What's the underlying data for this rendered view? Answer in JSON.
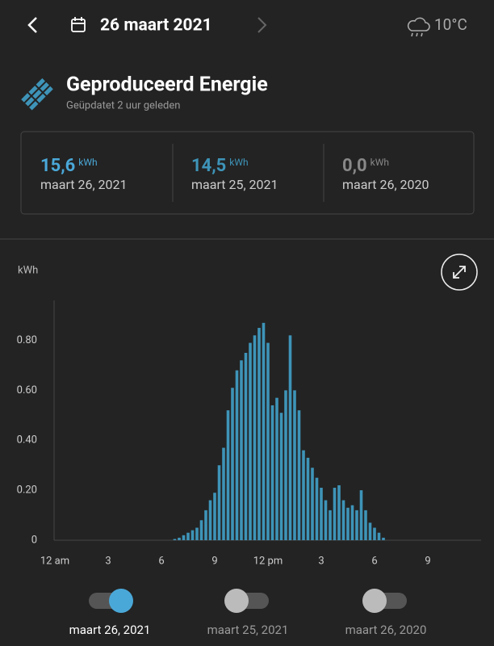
{
  "top_bar": {
    "date": "26 maart 2021",
    "temperature": "10°C"
  },
  "header": {
    "title": "Geproduceerd Energie",
    "subtitle": "Geüpdatet 2 uur geleden"
  },
  "summary": [
    {
      "value": "15,6",
      "unit": "kWh",
      "date": "maart 26, 2021"
    },
    {
      "value": "14,5",
      "unit": "kWh",
      "date": "maart 25, 2021"
    },
    {
      "value": "0,0",
      "unit": "kWh",
      "date": "maart 26, 2020"
    }
  ],
  "chart_data": {
    "type": "bar",
    "y_label": "kWh",
    "color": "#3e94b8",
    "grid": false,
    "x": [
      6.75,
      7,
      7.25,
      7.5,
      7.75,
      8,
      8.25,
      8.5,
      8.75,
      9,
      9.25,
      9.5,
      9.75,
      10,
      10.25,
      10.5,
      10.75,
      11,
      11.25,
      11.5,
      11.75,
      12,
      12.25,
      12.5,
      12.75,
      13,
      13.25,
      13.5,
      13.75,
      14,
      14.25,
      14.5,
      14.75,
      15,
      15.25,
      15.5,
      15.75,
      16,
      16.25,
      16.5,
      16.75,
      17,
      17.25,
      17.5,
      17.75,
      18,
      18.25,
      18.5
    ],
    "values": [
      0.005,
      0.01,
      0.02,
      0.03,
      0.04,
      0.05,
      0.08,
      0.12,
      0.16,
      0.19,
      0.3,
      0.37,
      0.52,
      0.61,
      0.68,
      0.72,
      0.75,
      0.79,
      0.82,
      0.85,
      0.87,
      0.79,
      0.54,
      0.57,
      0.51,
      0.6,
      0.82,
      0.6,
      0.52,
      0.36,
      0.33,
      0.29,
      0.25,
      0.21,
      0.16,
      0.12,
      0.21,
      0.22,
      0.16,
      0.13,
      0.14,
      0.12,
      0.2,
      0.12,
      0.07,
      0.05,
      0.03,
      0.01
    ],
    "xlim": [
      0,
      24
    ],
    "xticks": [
      {
        "value": 0,
        "label": "12 am"
      },
      3,
      6,
      9,
      {
        "value": 12,
        "label": "12 pm"
      },
      {
        "value": 15,
        "label": "3"
      },
      {
        "value": 18,
        "label": "6"
      },
      {
        "value": 21,
        "label": "9"
      }
    ],
    "ylim": [
      0,
      0.96
    ],
    "yticks": [
      0,
      {
        "value": 0.2,
        "label": "0.20"
      },
      {
        "value": 0.4,
        "label": "0.40"
      },
      {
        "value": 0.6,
        "label": "0.60"
      },
      {
        "value": 0.8,
        "label": "0.80"
      }
    ]
  },
  "toggles": [
    {
      "label": "maart 26, 2021",
      "on": true
    },
    {
      "label": "maart 25, 2021",
      "on": false
    },
    {
      "label": "maart 26, 2020",
      "on": false
    }
  ]
}
